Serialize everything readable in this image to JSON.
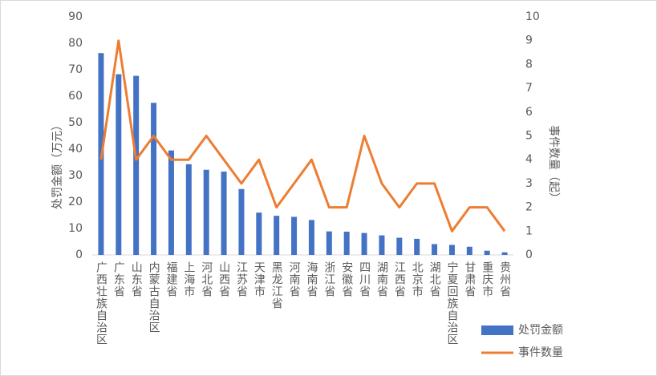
{
  "chart_data": {
    "type": "bar-line",
    "categories": [
      "广西壮族自治区",
      "广东省",
      "山东省",
      "内蒙古自治区",
      "福建省",
      "上海市",
      "河北省",
      "山西省",
      "江苏省",
      "天津市",
      "黑龙江省",
      "河南省",
      "海南省",
      "浙江省",
      "安徽省",
      "四川省",
      "湖南省",
      "江西省",
      "北京市",
      "湖北省",
      "宁夏回族自治区",
      "甘肃省",
      "重庆市",
      "贵州省"
    ],
    "series": [
      {
        "name": "处罚金额",
        "type": "bar",
        "color": "#4472c4",
        "values": [
          76.3,
          68.3,
          67.7,
          57.5,
          39.5,
          34.3,
          32.2,
          31.5,
          24.9,
          16,
          14.8,
          14.4,
          13.2,
          8.9,
          8.8,
          8.3,
          7.4,
          6.5,
          6.1,
          4.1,
          3.8,
          3.1,
          1.6,
          1.0
        ]
      },
      {
        "name": "事件数量",
        "type": "line",
        "axis": "y2",
        "color": "#ed7d31",
        "values": [
          4,
          9,
          4,
          5,
          4,
          4,
          5,
          4,
          3,
          4,
          2,
          3,
          4,
          2,
          2,
          5,
          3,
          2,
          3,
          3,
          1,
          2,
          2,
          1
        ]
      }
    ],
    "ylabel": "处罚金额（万元）",
    "y2label": "事件数量（起）",
    "ylim": [
      0,
      90
    ],
    "yticks": [
      0,
      10,
      20,
      30,
      40,
      50,
      60,
      70,
      80,
      90
    ],
    "y2lim": [
      0,
      10
    ],
    "y2ticks": [
      0,
      1,
      2,
      3,
      4,
      5,
      6,
      7,
      8,
      9,
      10
    ],
    "grid": false,
    "legend": "bottom-right"
  }
}
